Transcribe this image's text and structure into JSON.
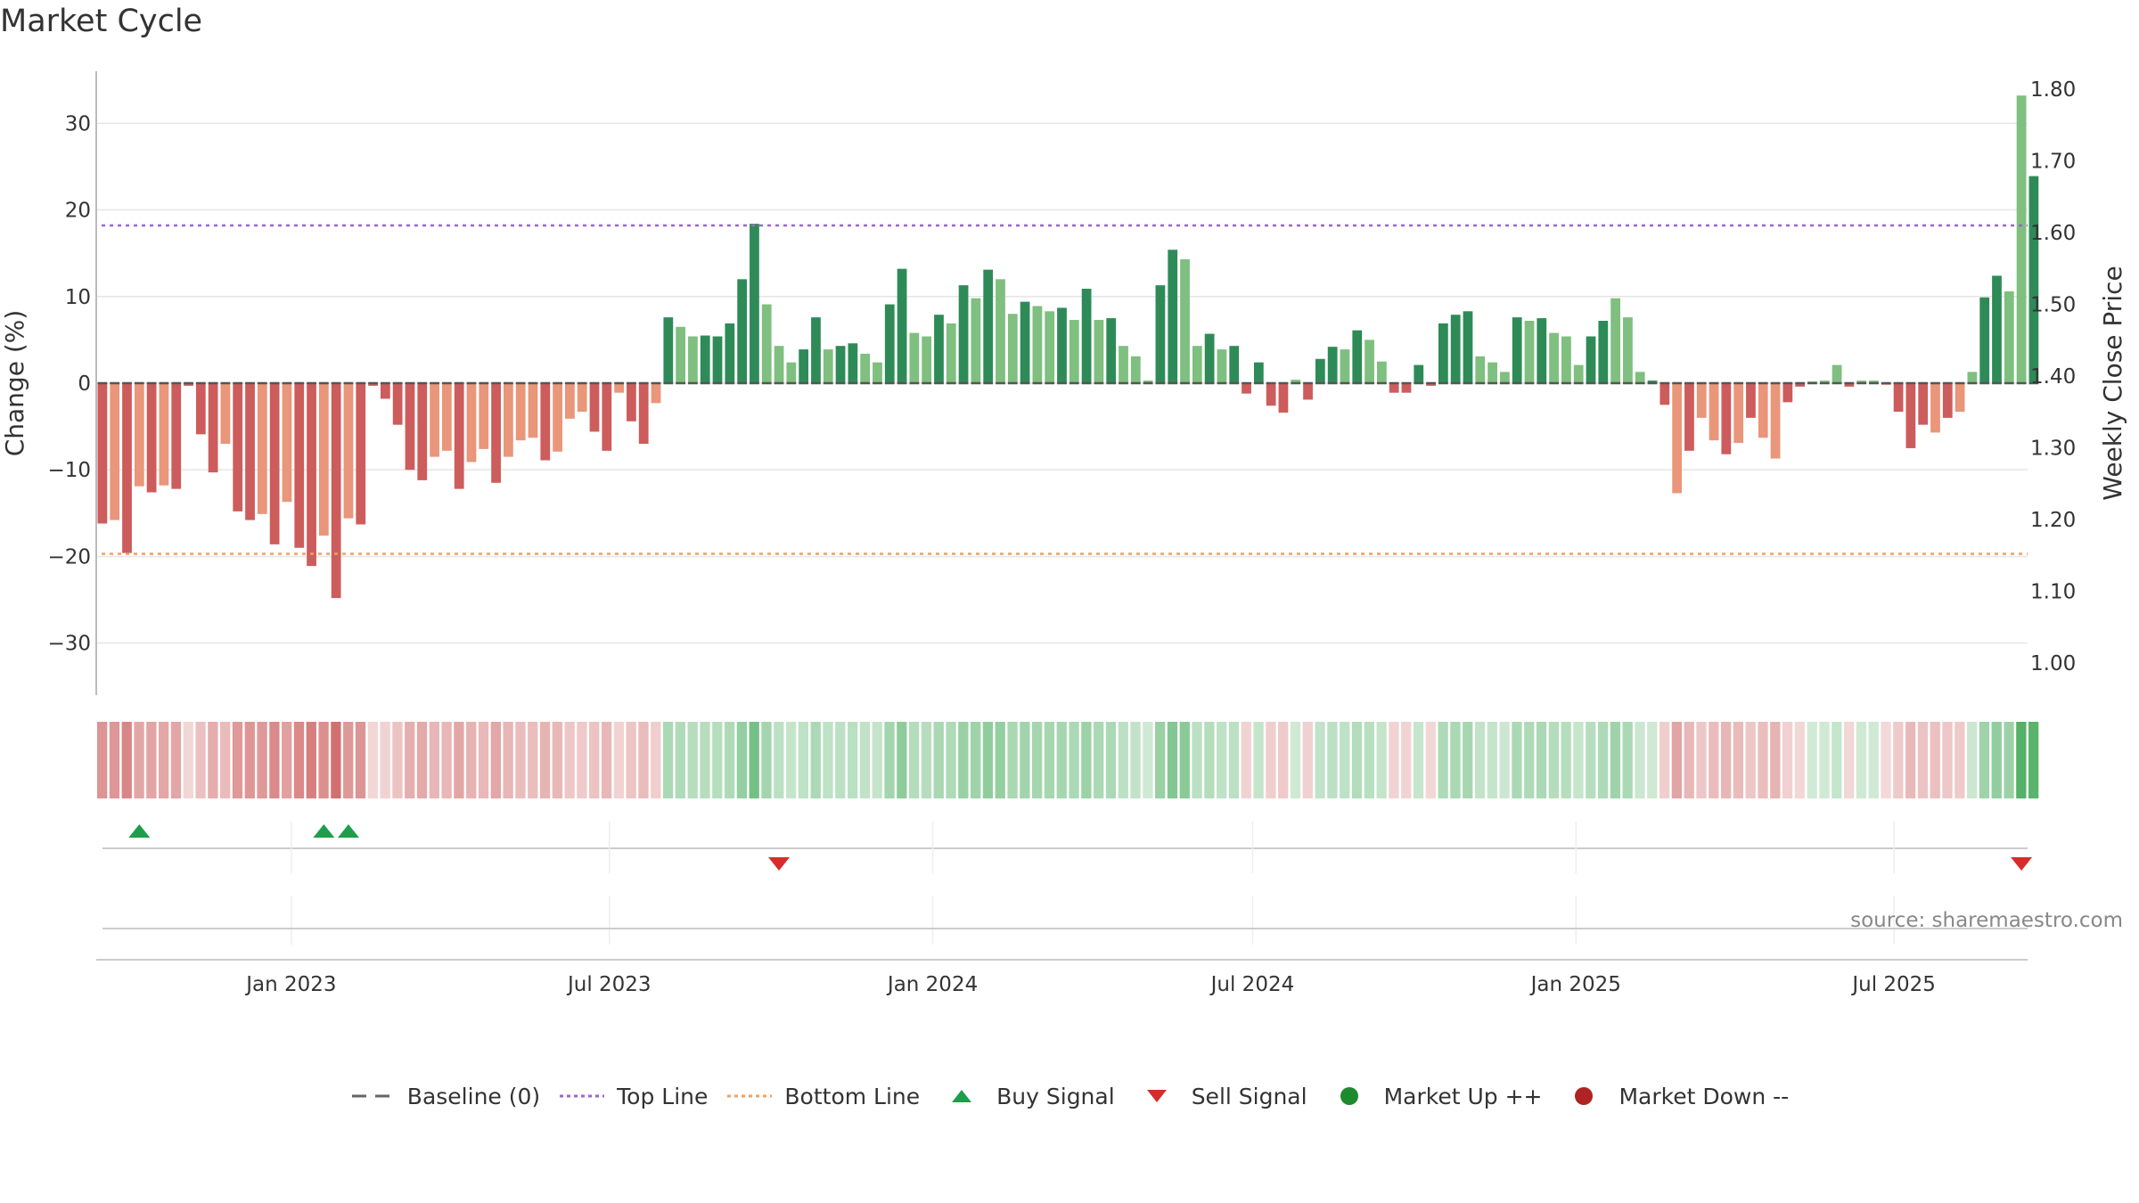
{
  "title": "Market Cycle",
  "source": "source: sharemaestro.com",
  "legend": [
    {
      "label": "Baseline (0)",
      "symbol": "dash",
      "color": "#666666"
    },
    {
      "label": "Top Line",
      "symbol": "dot-line",
      "color": "#9966cc"
    },
    {
      "label": "Bottom Line",
      "symbol": "dot-line",
      "color": "#f0a060"
    },
    {
      "label": "Buy Signal",
      "symbol": "triangle-up",
      "color": "#1e9e4a"
    },
    {
      "label": "Sell Signal",
      "symbol": "triangle-down",
      "color": "#d62c2c"
    },
    {
      "label": "Market Up ++",
      "symbol": "circle",
      "color": "#1e8a2e"
    },
    {
      "label": "Market Down --",
      "symbol": "circle",
      "color": "#b02323"
    }
  ],
  "colors": {
    "strong_up": "#2e8b57",
    "weak_up": "#7fbf7f",
    "strong_down": "#cd5c5c",
    "weak_down": "#e9967a",
    "grid": "#e6e6e6",
    "axis": "#bbbbbb"
  },
  "chart_data": {
    "type": "bar",
    "ylabel": "Change (%)",
    "y2label": "Weekly Close Price",
    "ylim": [
      -36,
      36
    ],
    "y2lim": [
      0.955,
      1.825
    ],
    "yticks": [
      -30,
      -20,
      -10,
      0,
      10,
      20,
      30
    ],
    "y2ticks": [
      1.0,
      1.1,
      1.2,
      1.3,
      1.4,
      1.5,
      1.6,
      1.7,
      1.8
    ],
    "top_line": 18.2,
    "bottom_line": -19.7,
    "x_start": "2022-09-12",
    "x_end": "2025-09-15",
    "x_ticks": [
      {
        "date": "2023-01-01",
        "label": "Jan 2023"
      },
      {
        "date": "2023-07-01",
        "label": "Jul 2023"
      },
      {
        "date": "2024-01-01",
        "label": "Jan 2024"
      },
      {
        "date": "2024-07-01",
        "label": "Jul 2024"
      },
      {
        "date": "2025-01-01",
        "label": "Jan 2025"
      },
      {
        "date": "2025-07-01",
        "label": "Jul 2025"
      }
    ],
    "first_week": "2022-09-12",
    "values": [
      -16.2,
      -15.8,
      -19.6,
      -11.9,
      -12.6,
      -11.8,
      -12.2,
      -0.3,
      -5.9,
      -10.3,
      -7.0,
      -14.8,
      -15.8,
      -15.1,
      -18.6,
      -13.7,
      -19.0,
      -21.1,
      -17.6,
      -24.8,
      -15.6,
      -16.3,
      -0.3,
      -1.8,
      -4.8,
      -10.0,
      -11.2,
      -8.5,
      -7.8,
      -12.2,
      -9.1,
      -7.6,
      -11.5,
      -8.5,
      -6.6,
      -6.3,
      -8.9,
      -7.9,
      -4.1,
      -3.3,
      -5.6,
      -7.8,
      -1.1,
      -4.4,
      -7.0,
      -2.3,
      7.6,
      6.5,
      5.4,
      5.5,
      5.4,
      6.9,
      12.0,
      18.4,
      9.1,
      4.3,
      2.4,
      3.9,
      7.6,
      3.9,
      4.3,
      4.6,
      3.4,
      2.4,
      9.1,
      13.2,
      5.8,
      5.4,
      7.9,
      6.9,
      11.3,
      9.8,
      13.1,
      12.0,
      8.0,
      9.4,
      8.9,
      8.3,
      8.7,
      7.3,
      10.9,
      7.3,
      7.5,
      4.3,
      3.1,
      0.3,
      11.3,
      15.4,
      14.3,
      4.3,
      5.7,
      3.9,
      4.3,
      -1.2,
      2.4,
      -2.6,
      -3.4,
      0.4,
      -1.9,
      2.8,
      4.2,
      3.9,
      6.1,
      5.0,
      2.5,
      -1.1,
      -1.1,
      2.1,
      -0.3,
      6.9,
      7.9,
      8.3,
      3.1,
      2.4,
      1.3,
      7.6,
      7.2,
      7.5,
      5.8,
      5.4,
      2.1,
      5.4,
      7.2,
      9.8,
      7.6,
      1.3,
      0.3,
      -2.5,
      -12.7,
      -7.8,
      -4.0,
      -6.6,
      -8.2,
      -6.9,
      -4.0,
      -6.3,
      -8.7,
      -2.2,
      -0.4,
      0.2,
      0.3,
      2.1,
      -0.4,
      0.3,
      0.3,
      -0.2,
      -3.3,
      -7.5,
      -4.8,
      -5.7,
      -4.0,
      -3.3,
      1.3,
      9.9,
      12.4,
      10.6,
      33.2,
      23.9
    ],
    "strength": "1,1,1,1,1,1,1,1,1,1,1,1,1,1,1,1,1,1,1,1,1,1,1,1,1,1,1,1,1,1,1,1,1,1,1,1,1,1,1,1,1,1,1,1,1,1,1,1,1,1,1,1,1,1,1,1,1,1,1,1,1,1,1,1,1,1,1,1,1,1,1,1,1,1,1,1,1,1,1,1,1,1,1,1,1,1,1,1,1,1,1,1,1,1,1,1,1,1,1,1,1,1,1,1,1,1,1,1,1,1,1,1,1,1,1,1,1,1,1,1,1,1,1,1,1,1,1,1,1,1,1,1,1,1,1,1,1,1,1,1,1,1,1,1,1,1,1,1,1,1,1,1,1,1,1,1,1,1",
    "weak_mask": "0,1,0,1,0,1,0,0,0,0,1,0,0,1,0,1,0,0,1,0,1,0,0,0,0,0,0,1,1,0,1,1,0,1,1,1,0,1,1,1,0,0,1,0,0,1,0,1,1,0,0,0,0,0,1,1,1,0,0,1,0,0,1,1,0,0,1,1,0,1,0,1,0,1,1,0,1,1,0,1,0,1,0,1,1,1,0,0,1,1,0,1,0,0,0,0,0,1,0,0,0,1,0,1,1,0,0,0,0,0,0,0,1,1,1,0,1,0,1,1,1,0,0,1,1,1,0,0,1,0,1,1,0,1,0,1,1,0,0,1,1,1,0,1,1,1,0,0,0,1,0,1,1,0,0,1,1,0",
    "price_line_visible": false,
    "buy_signals": [
      "2022-10-03",
      "2023-01-16",
      "2023-01-30"
    ],
    "sell_signals": [
      "2023-10-02",
      "2025-09-08"
    ],
    "market_up_markers": [],
    "market_down_markers": []
  }
}
